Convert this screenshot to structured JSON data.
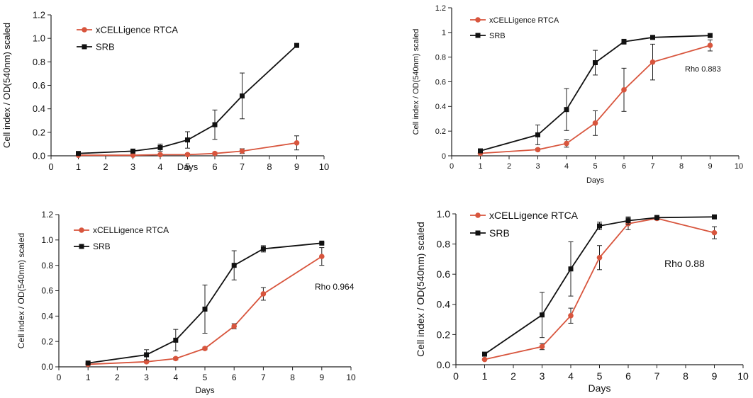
{
  "colors": {
    "srb": "#111111",
    "rtca": "#d8553d",
    "axis": "#222222"
  },
  "chart_data": [
    {
      "type": "line",
      "xlabel": "Days",
      "ylabel": "Cell index / OD(540nm)  scaled",
      "xlim": [
        0,
        10
      ],
      "ylim": [
        0,
        1.2
      ],
      "xticks": [
        "0",
        "1",
        "2",
        "3",
        "4",
        "5",
        "6",
        "7",
        "8",
        "9",
        "10"
      ],
      "yticks": [
        "0.0",
        "0.2",
        "0.4",
        "0.6",
        "0.8",
        "1.0",
        "1.2"
      ],
      "legend_position": "top-left",
      "annotation": "",
      "series": [
        {
          "name": "xCELLigence RTCA",
          "color": "#d8553d",
          "marker": "circle",
          "x": [
            1,
            3,
            4,
            5,
            6,
            7,
            9
          ],
          "y": [
            0.005,
            0.005,
            0.01,
            0.01,
            0.02,
            0.04,
            0.11
          ],
          "err": [
            0.003,
            0.003,
            0.005,
            0.01,
            0.01,
            0.02,
            0.06
          ]
        },
        {
          "name": "SRB",
          "color": "#111111",
          "marker": "square",
          "x": [
            1,
            3,
            4,
            5,
            6,
            7,
            9
          ],
          "y": [
            0.02,
            0.04,
            0.07,
            0.135,
            0.265,
            0.51,
            0.94
          ],
          "err": [
            0.005,
            0.01,
            0.03,
            0.07,
            0.125,
            0.195,
            0.005
          ]
        }
      ]
    },
    {
      "type": "line",
      "xlabel": "Days",
      "ylabel": "Cell index / OD(540nm)  scaled",
      "xlim": [
        0,
        10
      ],
      "ylim": [
        0,
        1.2
      ],
      "xticks": [
        "0",
        "1",
        "2",
        "3",
        "4",
        "5",
        "6",
        "7",
        "8",
        "9",
        "10"
      ],
      "yticks": [
        "0",
        "0.2",
        "0.4",
        "0.6",
        "0.8",
        "1",
        "1.2"
      ],
      "legend_position": "top-left",
      "annotation": "Rho 0.883",
      "series": [
        {
          "name": "xCELLigence RTCA",
          "color": "#d8553d",
          "marker": "circle",
          "x": [
            1,
            3,
            4,
            5,
            6,
            7,
            9
          ],
          "y": [
            0.02,
            0.05,
            0.1,
            0.265,
            0.535,
            0.76,
            0.895
          ],
          "err": [
            0.005,
            0.01,
            0.03,
            0.1,
            0.175,
            0.145,
            0.045
          ]
        },
        {
          "name": "SRB",
          "color": "#111111",
          "marker": "square",
          "x": [
            1,
            3,
            4,
            5,
            6,
            7,
            9
          ],
          "y": [
            0.04,
            0.17,
            0.375,
            0.755,
            0.925,
            0.96,
            0.975
          ],
          "err": [
            0.01,
            0.08,
            0.17,
            0.1,
            0.02,
            0.01,
            0.015
          ]
        }
      ]
    },
    {
      "type": "line",
      "xlabel": "Days",
      "ylabel": "Cell index / OD(540nm)  scaled",
      "xlim": [
        0,
        10
      ],
      "ylim": [
        0,
        1.2
      ],
      "xticks": [
        "0",
        "1",
        "2",
        "3",
        "4",
        "5",
        "6",
        "7",
        "8",
        "9",
        "10"
      ],
      "yticks": [
        "0.0",
        "0.2",
        "0.4",
        "0.6",
        "0.8",
        "1.0",
        "1.2"
      ],
      "legend_position": "top-left",
      "annotation": "Rho 0.964",
      "series": [
        {
          "name": "xCELLigence RTCA",
          "color": "#d8553d",
          "marker": "circle",
          "x": [
            1,
            3,
            4,
            5,
            6,
            7,
            9
          ],
          "y": [
            0.02,
            0.04,
            0.065,
            0.145,
            0.32,
            0.575,
            0.87
          ],
          "err": [
            0.005,
            0.01,
            0.01,
            0.01,
            0.02,
            0.05,
            0.07
          ]
        },
        {
          "name": "SRB",
          "color": "#111111",
          "marker": "square",
          "x": [
            1,
            3,
            4,
            5,
            6,
            7,
            9
          ],
          "y": [
            0.03,
            0.095,
            0.21,
            0.455,
            0.8,
            0.93,
            0.975
          ],
          "err": [
            0.005,
            0.04,
            0.085,
            0.19,
            0.115,
            0.025,
            0.005
          ]
        }
      ]
    },
    {
      "type": "line",
      "xlabel": "Days",
      "ylabel": "Cell index / OD(540nm)  scaled",
      "xlim": [
        0,
        10
      ],
      "ylim": [
        0,
        1.0
      ],
      "xticks": [
        "0",
        "1",
        "2",
        "3",
        "4",
        "5",
        "6",
        "7",
        "8",
        "9",
        "10"
      ],
      "yticks": [
        "0.0",
        "0.2",
        "0.4",
        "0.6",
        "0.8",
        "1.0"
      ],
      "legend_position": "top-left",
      "annotation": "Rho 0.88",
      "series": [
        {
          "name": "xCELLigence RTCA",
          "color": "#d8553d",
          "marker": "circle",
          "x": [
            1,
            3,
            4,
            5,
            6,
            7,
            9
          ],
          "y": [
            0.035,
            0.12,
            0.325,
            0.71,
            0.935,
            0.97,
            0.875
          ],
          "err": [
            0.005,
            0.02,
            0.05,
            0.08,
            0.04,
            0.01,
            0.04
          ]
        },
        {
          "name": "SRB",
          "color": "#111111",
          "marker": "square",
          "x": [
            1,
            3,
            4,
            5,
            6,
            7,
            9
          ],
          "y": [
            0.07,
            0.33,
            0.635,
            0.92,
            0.955,
            0.975,
            0.98
          ],
          "err": [
            0.01,
            0.15,
            0.18,
            0.025,
            0.025,
            0.015,
            0.005
          ]
        }
      ]
    }
  ]
}
